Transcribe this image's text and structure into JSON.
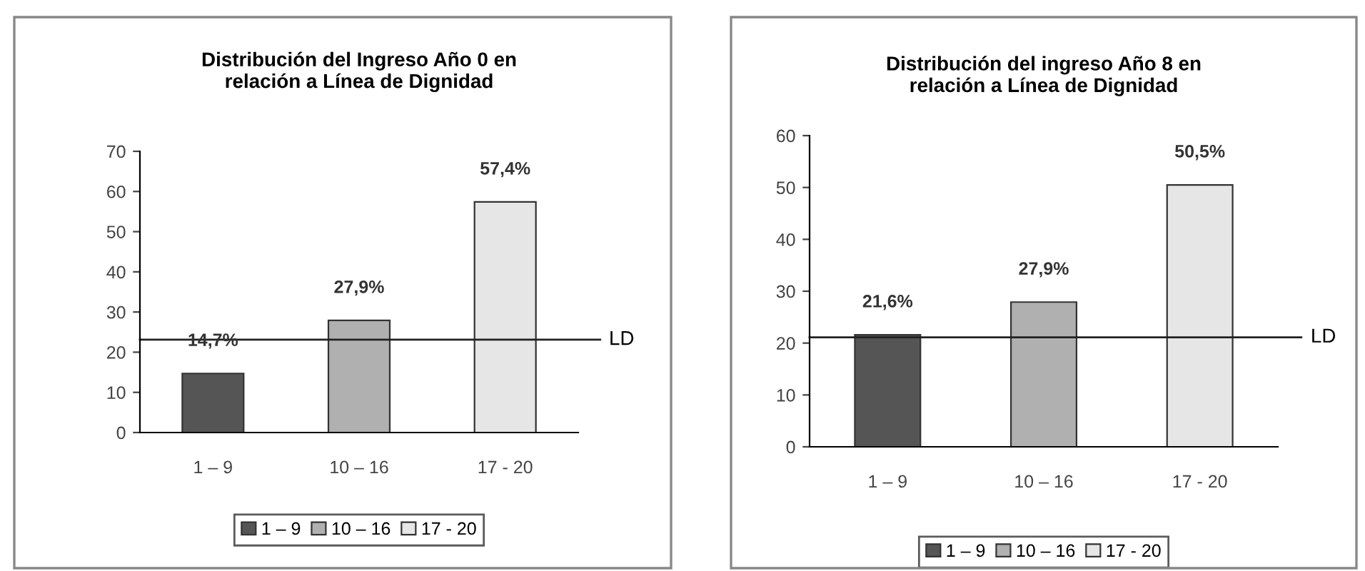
{
  "chart_data": [
    {
      "type": "bar",
      "title": "Distribución del Ingreso Año 0 en\nrelación a Línea de Dignidad",
      "categories": [
        "1 – 9",
        "10 – 16",
        "17 - 20"
      ],
      "series": [
        {
          "name": "1 – 9",
          "color": "#555555",
          "values": [
            14.7,
            null,
            null
          ],
          "value_labels": [
            "14,7%",
            null,
            null
          ]
        },
        {
          "name": "10 – 16",
          "color": "#b0b0b0",
          "values": [
            null,
            27.9,
            null
          ],
          "value_labels": [
            null,
            "27,9%",
            null
          ]
        },
        {
          "name": "17 - 20",
          "color": "#e6e6e6",
          "values": [
            null,
            null,
            57.4
          ],
          "value_labels": [
            null,
            null,
            "57,4%"
          ]
        }
      ],
      "ylim": [
        0,
        70
      ],
      "yticks": [
        0,
        10,
        20,
        30,
        40,
        50,
        60,
        70
      ],
      "ref_lines": [
        {
          "axis": "y",
          "value": 23.1,
          "label": "LD",
          "color": "#222222"
        }
      ],
      "legend": "bottom",
      "grid": false
    },
    {
      "type": "bar",
      "title": "Distribución del ingreso Año 8 en\nrelación a Línea de Dignidad",
      "categories": [
        "1 – 9",
        "10 – 16",
        "17 - 20"
      ],
      "series": [
        {
          "name": "1 – 9",
          "color": "#555555",
          "values": [
            21.6,
            null,
            null
          ],
          "value_labels": [
            "21,6%",
            null,
            null
          ]
        },
        {
          "name": "10 – 16",
          "color": "#b0b0b0",
          "values": [
            null,
            27.9,
            null
          ],
          "value_labels": [
            null,
            "27,9%",
            null
          ]
        },
        {
          "name": "17 - 20",
          "color": "#e6e6e6",
          "values": [
            null,
            null,
            50.5
          ],
          "value_labels": [
            null,
            null,
            "50,5%"
          ]
        }
      ],
      "ylim": [
        0,
        60
      ],
      "yticks": [
        0,
        10,
        20,
        30,
        40,
        50,
        60
      ],
      "ref_lines": [
        {
          "axis": "y",
          "value": 21.1,
          "label": "LD",
          "color": "#222222"
        }
      ],
      "legend": "bottom",
      "grid": false
    }
  ]
}
